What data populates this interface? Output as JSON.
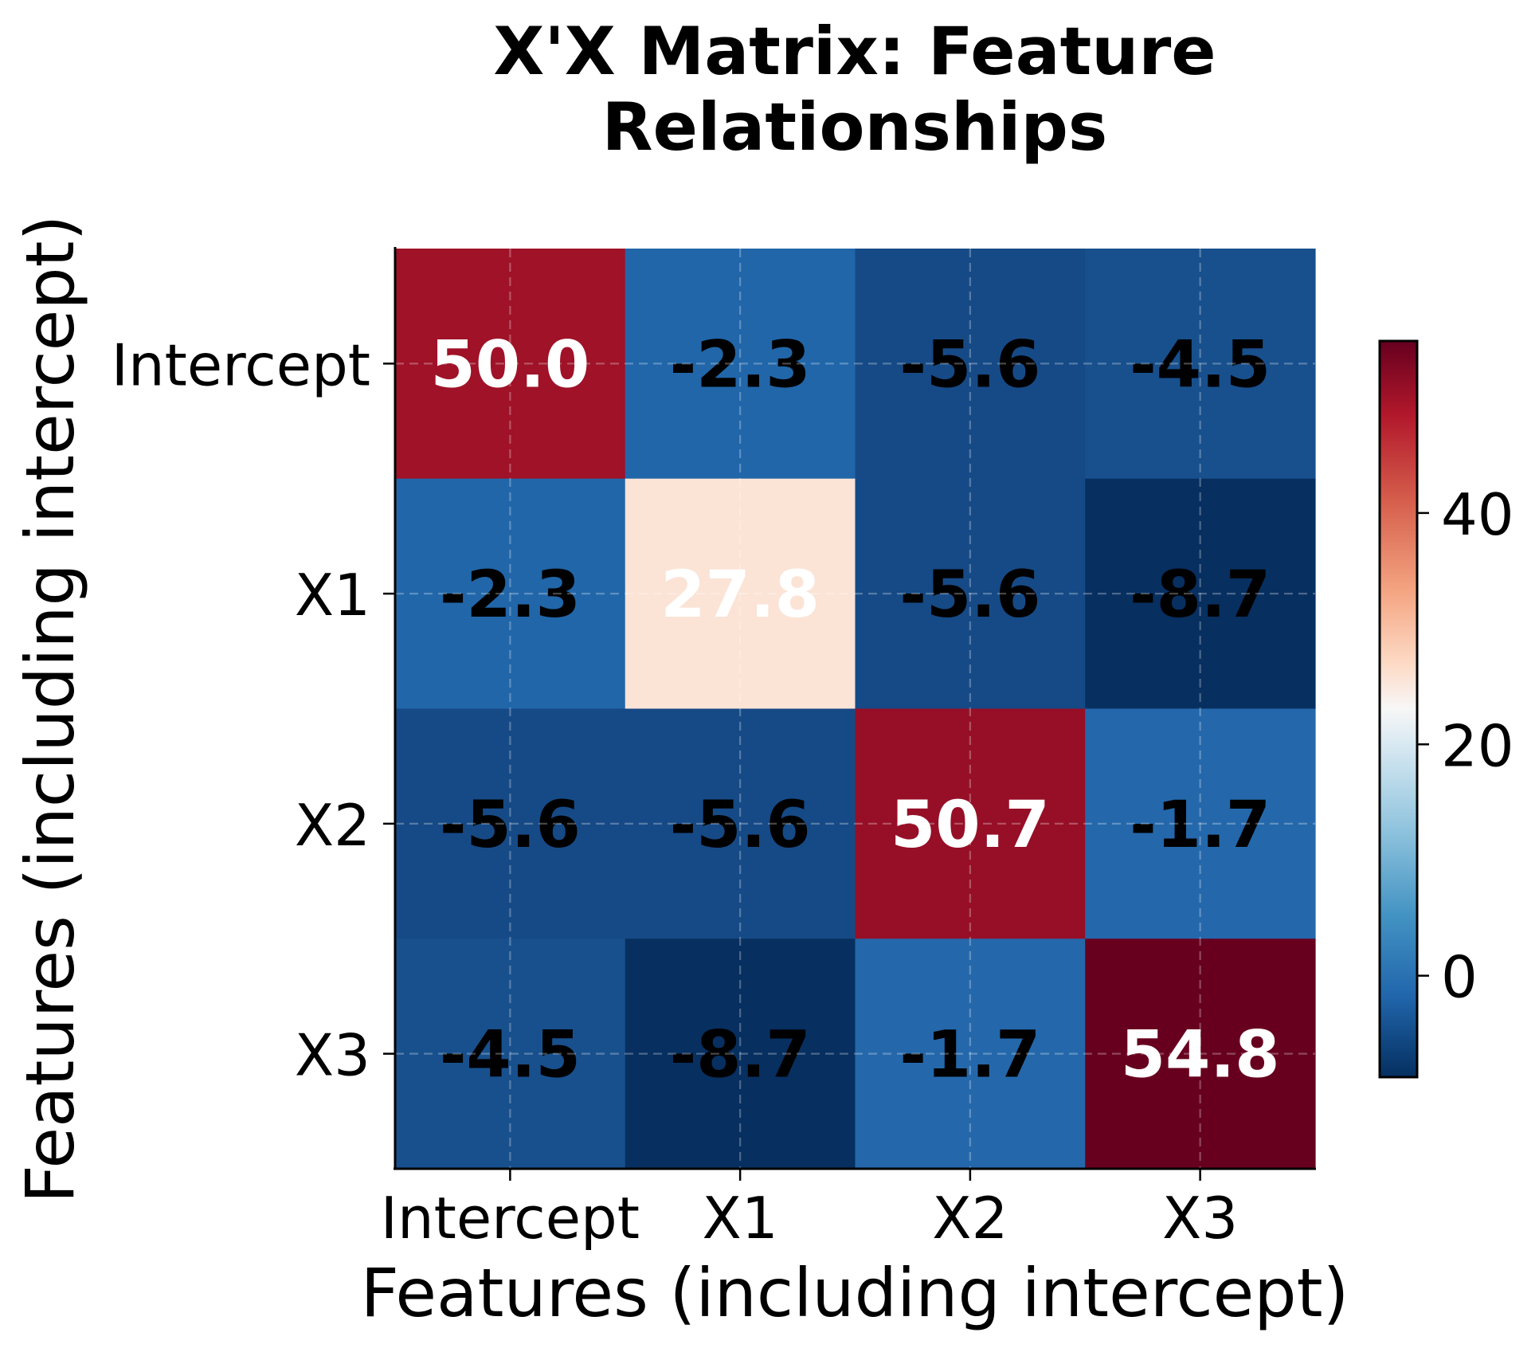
{
  "chart_data": {
    "type": "heatmap",
    "title": "X'X Matrix: Feature\nRelationships",
    "title_lines": [
      "X'X Matrix: Feature",
      "Relationships"
    ],
    "xlabel": "Features (including intercept)",
    "ylabel": "Features (including intercept)",
    "x_categories": [
      "Intercept",
      "X1",
      "X2",
      "X3"
    ],
    "y_categories": [
      "Intercept",
      "X1",
      "X2",
      "X3"
    ],
    "values": [
      [
        50.0,
        -2.3,
        -5.6,
        -4.5
      ],
      [
        -2.3,
        27.8,
        -5.6,
        -8.7
      ],
      [
        -5.6,
        -5.6,
        50.7,
        -1.7
      ],
      [
        -4.5,
        -8.7,
        -1.7,
        54.8
      ]
    ],
    "cell_labels": [
      [
        "50.0",
        "-2.3",
        "-5.6",
        "-4.5"
      ],
      [
        "-2.3",
        "27.8",
        "-5.6",
        "-8.7"
      ],
      [
        "-5.6",
        "-5.6",
        "50.7",
        "-1.7"
      ],
      [
        "-4.5",
        "-8.7",
        "-1.7",
        "54.8"
      ]
    ],
    "cell_colors": [
      [
        "#9f1228",
        "#2166a9",
        "#164a86",
        "#18508d"
      ],
      [
        "#2166a9",
        "#fbe3d6",
        "#164a86",
        "#072f60"
      ],
      [
        "#164a86",
        "#164a86",
        "#960f27",
        "#2468ab"
      ],
      [
        "#18508d",
        "#072f60",
        "#2468ab",
        "#67001f"
      ]
    ],
    "label_colors": [
      [
        "#ffffff",
        "#000000",
        "#000000",
        "#000000"
      ],
      [
        "#000000",
        "#ffffff",
        "#000000",
        "#000000"
      ],
      [
        "#000000",
        "#000000",
        "#ffffff",
        "#000000"
      ],
      [
        "#000000",
        "#000000",
        "#000000",
        "#ffffff"
      ]
    ],
    "colormap": "RdBu_r",
    "colorbar": {
      "vmin": -8.7,
      "vmax": 54.8,
      "ticks": [
        0,
        20,
        40
      ],
      "tick_labels": [
        "0",
        "20",
        "40"
      ],
      "gradient_stops": [
        {
          "offset": "0%",
          "color": "#67001f"
        },
        {
          "offset": "10%",
          "color": "#b2182b"
        },
        {
          "offset": "22%",
          "color": "#d6604d"
        },
        {
          "offset": "34%",
          "color": "#f4a582"
        },
        {
          "offset": "44%",
          "color": "#fddbc7"
        },
        {
          "offset": "50%",
          "color": "#f7f7f7"
        },
        {
          "offset": "56%",
          "color": "#d1e5f0"
        },
        {
          "offset": "66%",
          "color": "#92c5de"
        },
        {
          "offset": "78%",
          "color": "#4393c3"
        },
        {
          "offset": "89%",
          "color": "#2166ac"
        },
        {
          "offset": "100%",
          "color": "#053061"
        }
      ]
    },
    "grid": true,
    "grid_style": "dashed"
  }
}
